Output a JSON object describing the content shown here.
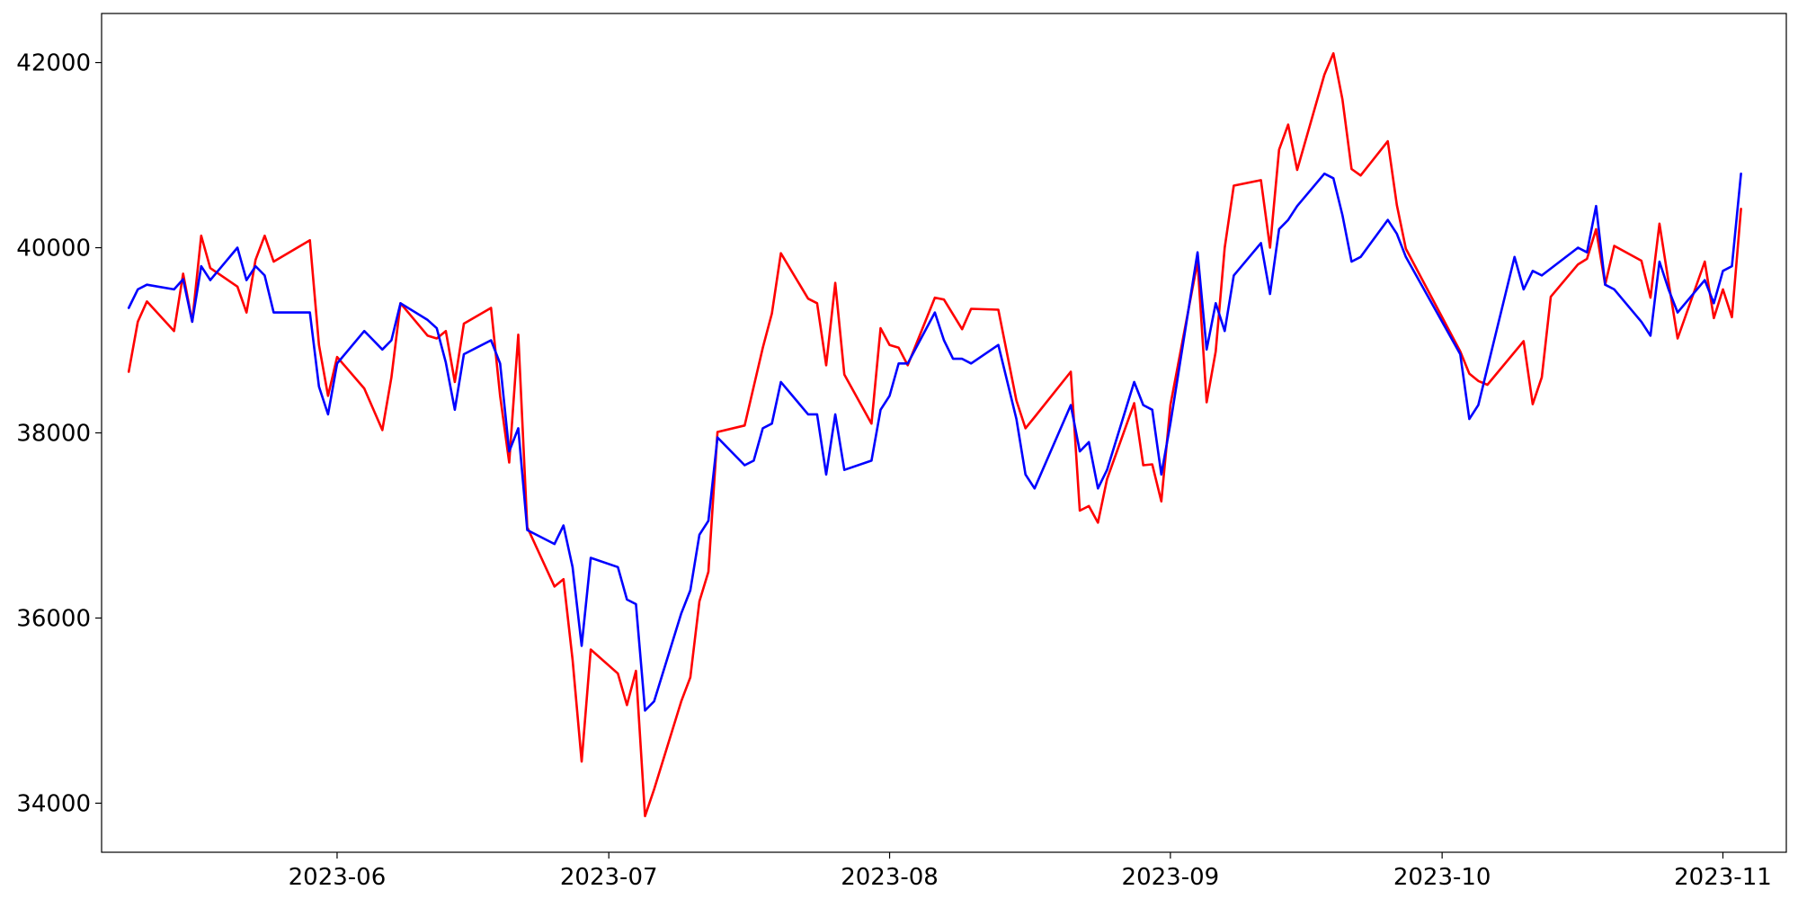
{
  "chart_data": {
    "type": "line",
    "title": "",
    "xlabel": "",
    "ylabel": "",
    "grid": false,
    "legend": "none",
    "xlim": [
      "2023-05-06",
      "2023-11-08"
    ],
    "ylim": [
      33470,
      42530
    ],
    "x_ticks": [
      {
        "date": "2023-06-01",
        "label": "2023-06"
      },
      {
        "date": "2023-07-01",
        "label": "2023-07"
      },
      {
        "date": "2023-08-01",
        "label": "2023-08"
      },
      {
        "date": "2023-09-01",
        "label": "2023-09"
      },
      {
        "date": "2023-10-01",
        "label": "2023-10"
      },
      {
        "date": "2023-11-01",
        "label": "2023-11"
      }
    ],
    "y_ticks": [
      {
        "value": 34000,
        "label": "34000"
      },
      {
        "value": 36000,
        "label": "36000"
      },
      {
        "value": 38000,
        "label": "38000"
      },
      {
        "value": 40000,
        "label": "40000"
      },
      {
        "value": 42000,
        "label": "42000"
      }
    ],
    "series": [
      {
        "color": "#ff0000",
        "points": [
          [
            "2023-05-09",
            38660
          ],
          [
            "2023-05-10",
            39200
          ],
          [
            "2023-05-11",
            39420
          ],
          [
            "2023-05-14",
            39100
          ],
          [
            "2023-05-15",
            39720
          ],
          [
            "2023-05-16",
            39200
          ],
          [
            "2023-05-17",
            40130
          ],
          [
            "2023-05-18",
            39780
          ],
          [
            "2023-05-21",
            39580
          ],
          [
            "2023-05-22",
            39300
          ],
          [
            "2023-05-23",
            39870
          ],
          [
            "2023-05-24",
            40130
          ],
          [
            "2023-05-25",
            39850
          ],
          [
            "2023-05-29",
            40080
          ],
          [
            "2023-05-30",
            38950
          ],
          [
            "2023-05-31",
            38400
          ],
          [
            "2023-06-01",
            38820
          ],
          [
            "2023-06-04",
            38480
          ],
          [
            "2023-06-06",
            38030
          ],
          [
            "2023-06-07",
            38600
          ],
          [
            "2023-06-08",
            39400
          ],
          [
            "2023-06-11",
            39050
          ],
          [
            "2023-06-12",
            39020
          ],
          [
            "2023-06-13",
            39100
          ],
          [
            "2023-06-14",
            38550
          ],
          [
            "2023-06-15",
            39180
          ],
          [
            "2023-06-18",
            39350
          ],
          [
            "2023-06-19",
            38400
          ],
          [
            "2023-06-20",
            37680
          ],
          [
            "2023-06-21",
            39060
          ],
          [
            "2023-06-22",
            36980
          ],
          [
            "2023-06-25",
            36340
          ],
          [
            "2023-06-26",
            36420
          ],
          [
            "2023-06-27",
            35550
          ],
          [
            "2023-06-28",
            34450
          ],
          [
            "2023-06-29",
            35660
          ],
          [
            "2023-07-02",
            35400
          ],
          [
            "2023-07-03",
            35060
          ],
          [
            "2023-07-04",
            35430
          ],
          [
            "2023-07-05",
            33860
          ],
          [
            "2023-07-06",
            34150
          ],
          [
            "2023-07-09",
            35100
          ],
          [
            "2023-07-10",
            35360
          ],
          [
            "2023-07-11",
            36180
          ],
          [
            "2023-07-12",
            36500
          ],
          [
            "2023-07-13",
            38010
          ],
          [
            "2023-07-16",
            38080
          ],
          [
            "2023-07-17",
            38500
          ],
          [
            "2023-07-18",
            38920
          ],
          [
            "2023-07-19",
            39290
          ],
          [
            "2023-07-20",
            39940
          ],
          [
            "2023-07-23",
            39450
          ],
          [
            "2023-07-24",
            39400
          ],
          [
            "2023-07-25",
            38730
          ],
          [
            "2023-07-26",
            39620
          ],
          [
            "2023-07-27",
            38630
          ],
          [
            "2023-07-30",
            38100
          ],
          [
            "2023-07-31",
            39130
          ],
          [
            "2023-08-01",
            38950
          ],
          [
            "2023-08-02",
            38920
          ],
          [
            "2023-08-03",
            38730
          ],
          [
            "2023-08-06",
            39460
          ],
          [
            "2023-08-07",
            39440
          ],
          [
            "2023-08-09",
            39120
          ],
          [
            "2023-08-10",
            39340
          ],
          [
            "2023-08-13",
            39330
          ],
          [
            "2023-08-15",
            38350
          ],
          [
            "2023-08-16",
            38050
          ],
          [
            "2023-08-17",
            38170
          ],
          [
            "2023-08-21",
            38660
          ],
          [
            "2023-08-22",
            37160
          ],
          [
            "2023-08-23",
            37210
          ],
          [
            "2023-08-24",
            37030
          ],
          [
            "2023-08-25",
            37500
          ],
          [
            "2023-08-28",
            38320
          ],
          [
            "2023-08-29",
            37650
          ],
          [
            "2023-08-30",
            37660
          ],
          [
            "2023-08-31",
            37260
          ],
          [
            "2023-09-01",
            38300
          ],
          [
            "2023-09-04",
            39850
          ],
          [
            "2023-09-05",
            38330
          ],
          [
            "2023-09-06",
            38880
          ],
          [
            "2023-09-07",
            40000
          ],
          [
            "2023-09-08",
            40670
          ],
          [
            "2023-09-11",
            40730
          ],
          [
            "2023-09-12",
            40000
          ],
          [
            "2023-09-13",
            41060
          ],
          [
            "2023-09-14",
            41330
          ],
          [
            "2023-09-15",
            40840
          ],
          [
            "2023-09-18",
            41870
          ],
          [
            "2023-09-19",
            42100
          ],
          [
            "2023-09-20",
            41600
          ],
          [
            "2023-09-21",
            40850
          ],
          [
            "2023-09-22",
            40780
          ],
          [
            "2023-09-25",
            41150
          ],
          [
            "2023-09-26",
            40460
          ],
          [
            "2023-09-27",
            39990
          ],
          [
            "2023-10-03",
            38880
          ],
          [
            "2023-10-04",
            38640
          ],
          [
            "2023-10-05",
            38560
          ],
          [
            "2023-10-06",
            38520
          ],
          [
            "2023-10-10",
            38990
          ],
          [
            "2023-10-11",
            38310
          ],
          [
            "2023-10-12",
            38600
          ],
          [
            "2023-10-13",
            39470
          ],
          [
            "2023-10-16",
            39820
          ],
          [
            "2023-10-17",
            39880
          ],
          [
            "2023-10-18",
            40200
          ],
          [
            "2023-10-19",
            39600
          ],
          [
            "2023-10-20",
            40020
          ],
          [
            "2023-10-23",
            39860
          ],
          [
            "2023-10-24",
            39460
          ],
          [
            "2023-10-25",
            40260
          ],
          [
            "2023-10-26",
            39630
          ],
          [
            "2023-10-27",
            39020
          ],
          [
            "2023-10-30",
            39850
          ],
          [
            "2023-10-31",
            39240
          ],
          [
            "2023-11-01",
            39550
          ],
          [
            "2023-11-02",
            39250
          ],
          [
            "2023-11-03",
            40420
          ]
        ]
      },
      {
        "color": "#0000ff",
        "points": [
          [
            "2023-05-09",
            39350
          ],
          [
            "2023-05-10",
            39550
          ],
          [
            "2023-05-11",
            39600
          ],
          [
            "2023-05-14",
            39550
          ],
          [
            "2023-05-15",
            39660
          ],
          [
            "2023-05-16",
            39200
          ],
          [
            "2023-05-17",
            39800
          ],
          [
            "2023-05-18",
            39650
          ],
          [
            "2023-05-21",
            40000
          ],
          [
            "2023-05-22",
            39650
          ],
          [
            "2023-05-23",
            39800
          ],
          [
            "2023-05-24",
            39700
          ],
          [
            "2023-05-25",
            39300
          ],
          [
            "2023-05-29",
            39300
          ],
          [
            "2023-05-30",
            38500
          ],
          [
            "2023-05-31",
            38200
          ],
          [
            "2023-06-01",
            38750
          ],
          [
            "2023-06-04",
            39100
          ],
          [
            "2023-06-05",
            39000
          ],
          [
            "2023-06-06",
            38900
          ],
          [
            "2023-06-07",
            39000
          ],
          [
            "2023-06-08",
            39400
          ],
          [
            "2023-06-11",
            39220
          ],
          [
            "2023-06-12",
            39130
          ],
          [
            "2023-06-13",
            38760
          ],
          [
            "2023-06-14",
            38250
          ],
          [
            "2023-06-15",
            38850
          ],
          [
            "2023-06-18",
            39000
          ],
          [
            "2023-06-19",
            38750
          ],
          [
            "2023-06-20",
            37800
          ],
          [
            "2023-06-21",
            38050
          ],
          [
            "2023-06-22",
            36950
          ],
          [
            "2023-06-25",
            36800
          ],
          [
            "2023-06-26",
            37000
          ],
          [
            "2023-06-27",
            36550
          ],
          [
            "2023-06-28",
            35700
          ],
          [
            "2023-06-29",
            36650
          ],
          [
            "2023-07-02",
            36550
          ],
          [
            "2023-07-03",
            36200
          ],
          [
            "2023-07-04",
            36150
          ],
          [
            "2023-07-05",
            35000
          ],
          [
            "2023-07-06",
            35100
          ],
          [
            "2023-07-09",
            36050
          ],
          [
            "2023-07-10",
            36300
          ],
          [
            "2023-07-11",
            36900
          ],
          [
            "2023-07-12",
            37050
          ],
          [
            "2023-07-13",
            37950
          ],
          [
            "2023-07-16",
            37650
          ],
          [
            "2023-07-17",
            37700
          ],
          [
            "2023-07-18",
            38050
          ],
          [
            "2023-07-19",
            38100
          ],
          [
            "2023-07-20",
            38550
          ],
          [
            "2023-07-23",
            38200
          ],
          [
            "2023-07-24",
            38200
          ],
          [
            "2023-07-25",
            37550
          ],
          [
            "2023-07-26",
            38200
          ],
          [
            "2023-07-27",
            37600
          ],
          [
            "2023-07-30",
            37700
          ],
          [
            "2023-07-31",
            38250
          ],
          [
            "2023-08-01",
            38400
          ],
          [
            "2023-08-02",
            38750
          ],
          [
            "2023-08-03",
            38750
          ],
          [
            "2023-08-06",
            39300
          ],
          [
            "2023-08-07",
            39000
          ],
          [
            "2023-08-08",
            38800
          ],
          [
            "2023-08-09",
            38800
          ],
          [
            "2023-08-10",
            38750
          ],
          [
            "2023-08-13",
            38950
          ],
          [
            "2023-08-15",
            38150
          ],
          [
            "2023-08-16",
            37550
          ],
          [
            "2023-08-17",
            37400
          ],
          [
            "2023-08-21",
            38300
          ],
          [
            "2023-08-22",
            37800
          ],
          [
            "2023-08-23",
            37900
          ],
          [
            "2023-08-24",
            37400
          ],
          [
            "2023-08-25",
            37600
          ],
          [
            "2023-08-28",
            38550
          ],
          [
            "2023-08-29",
            38300
          ],
          [
            "2023-08-30",
            38250
          ],
          [
            "2023-08-31",
            37550
          ],
          [
            "2023-09-01",
            38100
          ],
          [
            "2023-09-04",
            39950
          ],
          [
            "2023-09-05",
            38900
          ],
          [
            "2023-09-06",
            39400
          ],
          [
            "2023-09-07",
            39100
          ],
          [
            "2023-09-08",
            39700
          ],
          [
            "2023-09-11",
            40050
          ],
          [
            "2023-09-12",
            39500
          ],
          [
            "2023-09-13",
            40200
          ],
          [
            "2023-09-14",
            40300
          ],
          [
            "2023-09-15",
            40450
          ],
          [
            "2023-09-18",
            40800
          ],
          [
            "2023-09-19",
            40750
          ],
          [
            "2023-09-20",
            40350
          ],
          [
            "2023-09-21",
            39850
          ],
          [
            "2023-09-22",
            39900
          ],
          [
            "2023-09-25",
            40300
          ],
          [
            "2023-09-26",
            40150
          ],
          [
            "2023-09-27",
            39900
          ],
          [
            "2023-10-03",
            38850
          ],
          [
            "2023-10-04",
            38150
          ],
          [
            "2023-10-05",
            38300
          ],
          [
            "2023-10-09",
            39900
          ],
          [
            "2023-10-10",
            39550
          ],
          [
            "2023-10-11",
            39750
          ],
          [
            "2023-10-12",
            39700
          ],
          [
            "2023-10-16",
            40000
          ],
          [
            "2023-10-17",
            39950
          ],
          [
            "2023-10-18",
            40450
          ],
          [
            "2023-10-19",
            39600
          ],
          [
            "2023-10-20",
            39550
          ],
          [
            "2023-10-23",
            39200
          ],
          [
            "2023-10-24",
            39050
          ],
          [
            "2023-10-25",
            39850
          ],
          [
            "2023-10-26",
            39550
          ],
          [
            "2023-10-27",
            39300
          ],
          [
            "2023-10-30",
            39650
          ],
          [
            "2023-10-31",
            39400
          ],
          [
            "2023-11-01",
            39750
          ],
          [
            "2023-11-02",
            39800
          ],
          [
            "2023-11-03",
            40800
          ]
        ]
      }
    ]
  }
}
